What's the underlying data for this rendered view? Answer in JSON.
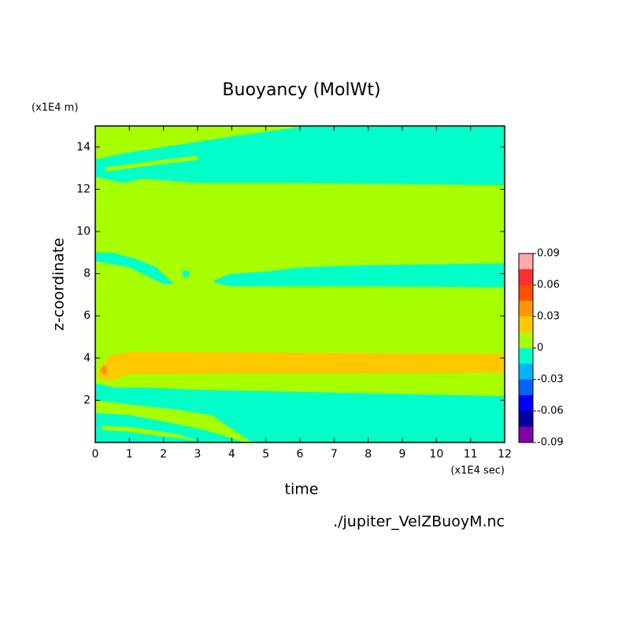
{
  "chart_data": {
    "type": "contour",
    "title": "Buoyancy (MolWt)",
    "x_label": "time",
    "y_label": "z-coordinate",
    "x_unit": "(x1E4 sec)",
    "y_unit": "(x1E4 m)",
    "source": "./jupiter_VelZBuoyM.nc",
    "xlim": [
      0,
      12
    ],
    "ylim": [
      0,
      15
    ],
    "xticks": [
      0,
      1,
      2,
      3,
      4,
      5,
      6,
      7,
      8,
      9,
      10,
      11,
      12
    ],
    "yticks": [
      2,
      4,
      6,
      8,
      10,
      12,
      14
    ],
    "background_level": 0.0075,
    "colorbar": {
      "levels": [
        -0.09,
        -0.075,
        -0.06,
        -0.045,
        -0.03,
        -0.015,
        0,
        0.015,
        0.03,
        0.045,
        0.06,
        0.075,
        0.09
      ],
      "colors": [
        "#8000a8",
        "#0000a0",
        "#0000ff",
        "#0064ff",
        "#00b4ff",
        "#00ffc8",
        "#a8ff00",
        "#ffc800",
        "#ff9600",
        "#ff5000",
        "#ff3030",
        "#ffaaaa"
      ],
      "ticks": [
        -0.09,
        -0.06,
        -0.03,
        0,
        0.03,
        0.06,
        0.09
      ]
    },
    "regions": [
      {
        "level": -0.0075,
        "points": [
          [
            0,
            12.6
          ],
          [
            0.8,
            12.3
          ],
          [
            1.4,
            12.5
          ],
          [
            3,
            12.3
          ],
          [
            6,
            12.3
          ],
          [
            12,
            12.2
          ],
          [
            12,
            15
          ],
          [
            6.2,
            15
          ],
          [
            4,
            14.5
          ],
          [
            2,
            14
          ],
          [
            0.8,
            13.7
          ],
          [
            0,
            13.4
          ]
        ]
      },
      {
        "level": 0.0075,
        "points": [
          [
            0.3,
            13.05
          ],
          [
            1.5,
            13.3
          ],
          [
            3,
            13.6
          ],
          [
            3,
            13.4
          ],
          [
            1.5,
            13.1
          ],
          [
            0.3,
            12.85
          ]
        ]
      },
      {
        "level": -0.0075,
        "points": [
          [
            0,
            9.0
          ],
          [
            0.5,
            9.0
          ],
          [
            1.2,
            8.7
          ],
          [
            1.8,
            8.3
          ],
          [
            2.3,
            7.5
          ],
          [
            2.0,
            7.5
          ],
          [
            1.5,
            7.9
          ],
          [
            1.0,
            8.3
          ],
          [
            0,
            8.6
          ]
        ]
      },
      {
        "level": -0.0075,
        "points": [
          [
            2.55,
            8.15
          ],
          [
            2.75,
            8.15
          ],
          [
            2.75,
            7.85
          ],
          [
            2.55,
            7.85
          ]
        ]
      },
      {
        "level": -0.0075,
        "points": [
          [
            3.5,
            7.7
          ],
          [
            4,
            8.0
          ],
          [
            5,
            8.1
          ],
          [
            6,
            8.3
          ],
          [
            8,
            8.4
          ],
          [
            12,
            8.5
          ],
          [
            12,
            7.35
          ],
          [
            8,
            7.4
          ],
          [
            4,
            7.4
          ],
          [
            3.5,
            7.55
          ]
        ]
      },
      {
        "level": 0.0225,
        "points": [
          [
            0.1,
            3.4
          ],
          [
            0.4,
            4.1
          ],
          [
            1,
            4.3
          ],
          [
            12,
            4.2
          ],
          [
            12,
            3.3
          ],
          [
            1,
            3.25
          ],
          [
            0.4,
            2.9
          ],
          [
            0.1,
            3.1
          ]
        ]
      },
      {
        "level": 0.0375,
        "points": [
          [
            0.15,
            3.45
          ],
          [
            0.22,
            3.65
          ],
          [
            0.32,
            3.6
          ],
          [
            0.35,
            3.35
          ],
          [
            0.25,
            3.2
          ]
        ]
      },
      {
        "level": -0.0075,
        "points": [
          [
            0,
            2.8
          ],
          [
            0.6,
            2.6
          ],
          [
            1.5,
            2.6
          ],
          [
            3,
            2.5
          ],
          [
            6,
            2.4
          ],
          [
            12,
            2.2
          ],
          [
            12,
            0
          ],
          [
            4.6,
            0
          ],
          [
            3.4,
            1.3
          ],
          [
            2.2,
            1.6
          ],
          [
            1,
            1.8
          ],
          [
            0,
            2.0
          ]
        ]
      },
      {
        "level": -0.0075,
        "points": [
          [
            0,
            1.4
          ],
          [
            1,
            1.3
          ],
          [
            2,
            1.0
          ],
          [
            3.2,
            0.6
          ],
          [
            4.4,
            0
          ],
          [
            0,
            0
          ]
        ]
      },
      {
        "level": 0.0075,
        "points": [
          [
            0.2,
            0.8
          ],
          [
            1.2,
            0.7
          ],
          [
            2.4,
            0.4
          ],
          [
            3,
            0.1
          ],
          [
            2.2,
            0.25
          ],
          [
            1,
            0.5
          ],
          [
            0.2,
            0.6
          ]
        ]
      }
    ]
  }
}
